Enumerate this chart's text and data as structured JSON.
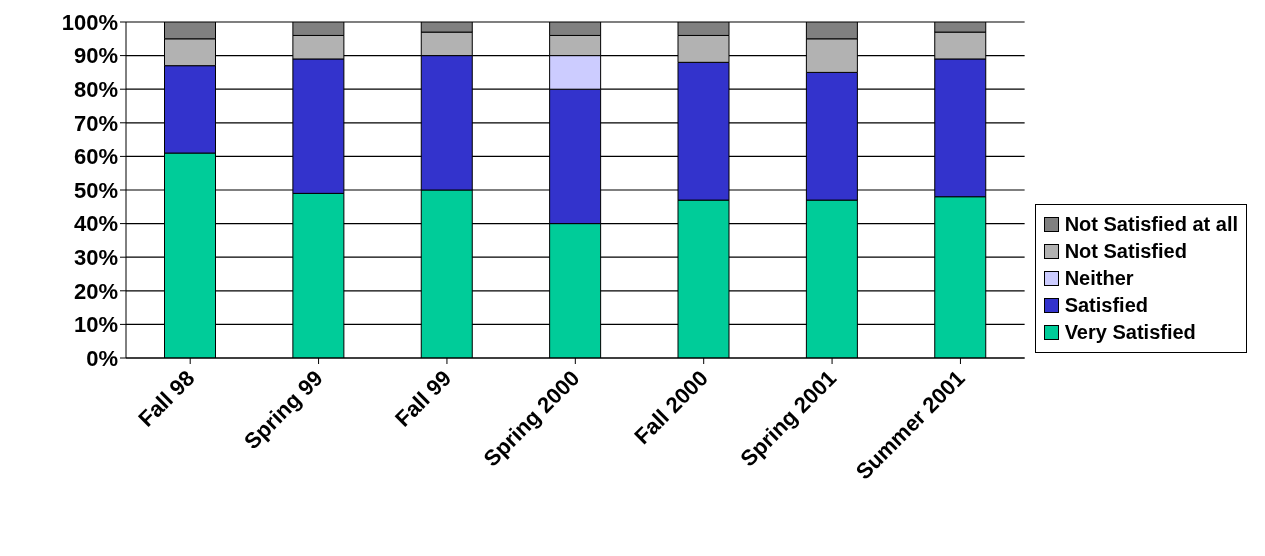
{
  "chart_data": {
    "type": "bar",
    "stacked": true,
    "categories": [
      "Fall 98",
      "Spring 99",
      "Fall 99",
      "Spring 2000",
      "Fall 2000",
      "Spring 2001",
      "Summer 2001"
    ],
    "series": [
      {
        "name": "Very Satisfied",
        "color": "#00cc99",
        "values": [
          61,
          49,
          50,
          40,
          47,
          47,
          48
        ]
      },
      {
        "name": "Satisfied",
        "color": "#3333cc",
        "values": [
          26,
          40,
          40,
          40,
          41,
          38,
          41
        ]
      },
      {
        "name": "Neither",
        "color": "#ccccff",
        "values": [
          0,
          0,
          0,
          10,
          0,
          0,
          0
        ]
      },
      {
        "name": "Not Satisfied",
        "color": "#b2b2b2",
        "values": [
          8,
          7,
          7,
          6,
          8,
          10,
          8
        ]
      },
      {
        "name": "Not Satisfied at all",
        "color": "#808080",
        "values": [
          5,
          4,
          3,
          4,
          4,
          5,
          3
        ]
      }
    ],
    "ylim": [
      0,
      100
    ],
    "yticks": [
      {
        "value": 0,
        "label": "0%"
      },
      {
        "value": 10,
        "label": "10%"
      },
      {
        "value": 20,
        "label": "20%"
      },
      {
        "value": 30,
        "label": "30%"
      },
      {
        "value": 40,
        "label": "40%"
      },
      {
        "value": 50,
        "label": "50%"
      },
      {
        "value": 60,
        "label": "60%"
      },
      {
        "value": 70,
        "label": "70%"
      },
      {
        "value": 80,
        "label": "80%"
      },
      {
        "value": 90,
        "label": "90%"
      },
      {
        "value": 100,
        "label": "100%"
      }
    ],
    "grid": "y",
    "legend": "right"
  }
}
